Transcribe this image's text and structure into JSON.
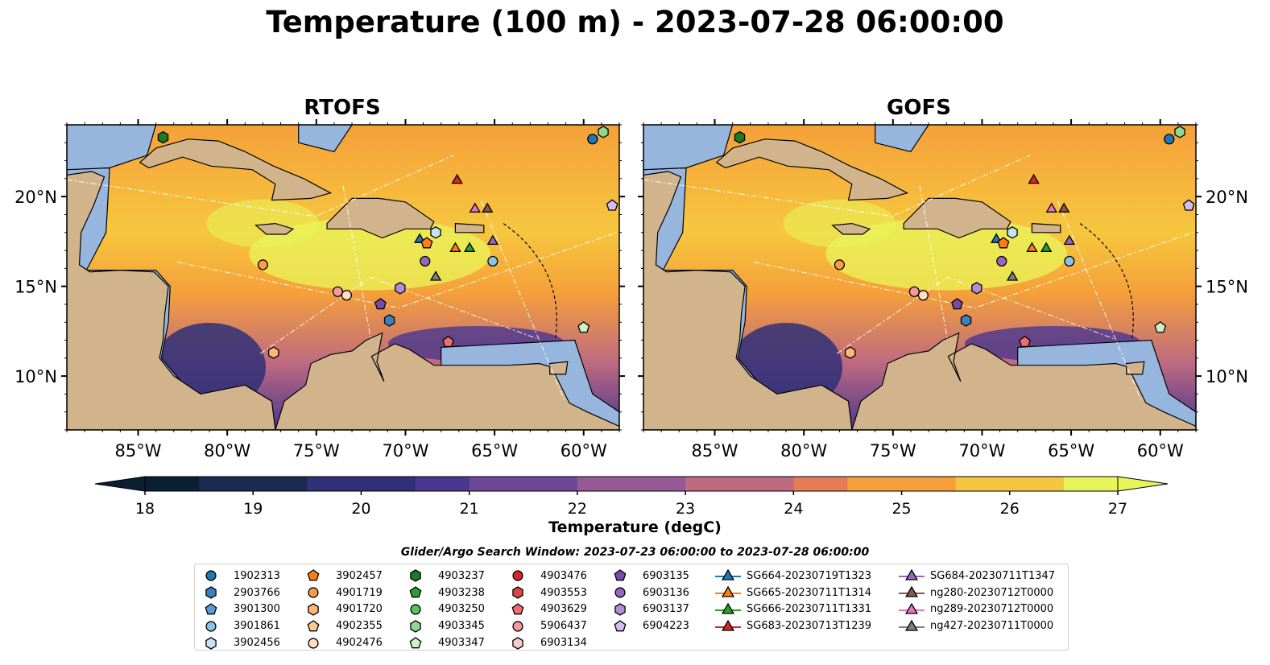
{
  "title": "Temperature (100 m) - 2023-07-28 06:00:00",
  "panels": [
    {
      "title": "RTOFS"
    },
    {
      "title": "GOFS"
    }
  ],
  "lon_ticks": [
    "85°W",
    "80°W",
    "75°W",
    "70°W",
    "65°W",
    "60°W"
  ],
  "lat_ticks": [
    "20°N",
    "15°N",
    "10°N"
  ],
  "colorbar": {
    "label": "Temperature (degC)",
    "min": 18,
    "max": 27,
    "tick_labels": [
      "18",
      "19",
      "20",
      "21",
      "22",
      "23",
      "24",
      "25",
      "26",
      "27"
    ],
    "colors": [
      "#0b1f33",
      "#1b2a52",
      "#2f3078",
      "#4a3790",
      "#6c4897",
      "#955a96",
      "#be6a80",
      "#e57c58",
      "#f5a03a",
      "#f6c73e",
      "#e8f55a"
    ]
  },
  "colors": {
    "ocean_shelf": "#96b6de",
    "land": "#d2b48c",
    "warm": "#f59a3f",
    "hot": "#e6f357",
    "cool": "#2f3078"
  },
  "legend": {
    "title": "Glider/Argo Search Window: 2023-07-23 06:00:00 to 2023-07-28 06:00:00",
    "columns": [
      [
        {
          "label": "1902313",
          "marker": "circle",
          "color": "#1f77b4"
        },
        {
          "label": "2903766",
          "marker": "hexagon",
          "color": "#3a80c0"
        },
        {
          "label": "3901300",
          "marker": "pentagon",
          "color": "#5b9bd5"
        },
        {
          "label": "3901861",
          "marker": "circle",
          "color": "#8cc2e8"
        },
        {
          "label": "3902456",
          "marker": "hexagon",
          "color": "#c6e2f5"
        }
      ],
      [
        {
          "label": "3902457",
          "marker": "pentagon",
          "color": "#ff7f0e"
        },
        {
          "label": "4901719",
          "marker": "circle",
          "color": "#fd9a4b"
        },
        {
          "label": "4901720",
          "marker": "hexagon",
          "color": "#fdb677"
        },
        {
          "label": "4902355",
          "marker": "pentagon",
          "color": "#fdc894"
        },
        {
          "label": "4902476",
          "marker": "circle",
          "color": "#fee0c0"
        }
      ],
      [
        {
          "label": "4903237",
          "marker": "hexagon",
          "color": "#1c7c24"
        },
        {
          "label": "4903238",
          "marker": "pentagon",
          "color": "#2ca02c"
        },
        {
          "label": "4903250",
          "marker": "circle",
          "color": "#5cc05c"
        },
        {
          "label": "4903345",
          "marker": "hexagon",
          "color": "#90d890"
        },
        {
          "label": "4903347",
          "marker": "pentagon",
          "color": "#cbf1cb"
        }
      ],
      [
        {
          "label": "4903476",
          "marker": "circle",
          "color": "#d62728"
        },
        {
          "label": "4903553",
          "marker": "hexagon",
          "color": "#e04545"
        },
        {
          "label": "4903629",
          "marker": "pentagon",
          "color": "#ee6e6e"
        },
        {
          "label": "5906437",
          "marker": "circle",
          "color": "#f59a9a"
        },
        {
          "label": "6903134",
          "marker": "hexagon",
          "color": "#fbcccc"
        }
      ],
      [
        {
          "label": "6903135",
          "marker": "pentagon",
          "color": "#7b4aa8"
        },
        {
          "label": "6903136",
          "marker": "circle",
          "color": "#9467bd"
        },
        {
          "label": "6903137",
          "marker": "hexagon",
          "color": "#b08ed6"
        },
        {
          "label": "6904223",
          "marker": "pentagon",
          "color": "#d3bcf0"
        }
      ],
      [
        {
          "label": "SG664-20230719T1323",
          "marker": "triangle-line",
          "color": "#1f77b4"
        },
        {
          "label": "SG665-20230711T1314",
          "marker": "triangle-line",
          "color": "#ff7f0e"
        },
        {
          "label": "SG666-20230711T1331",
          "marker": "triangle-line",
          "color": "#2ca02c"
        },
        {
          "label": "SG683-20230713T1239",
          "marker": "triangle-line",
          "color": "#d62728"
        }
      ],
      [
        {
          "label": "SG684-20230711T1347",
          "marker": "triangle-line",
          "color": "#9467bd"
        },
        {
          "label": "ng280-20230712T0000",
          "marker": "triangle-line",
          "color": "#8c564b"
        },
        {
          "label": "ng289-20230712T0000",
          "marker": "triangle-line",
          "color": "#e377c2"
        },
        {
          "label": "ng427-20230711T0000",
          "marker": "triangle-line",
          "color": "#7f7f7f"
        }
      ]
    ]
  },
  "markers_on_map": [
    {
      "marker": "circle",
      "color": "#1f77b4",
      "lon": -59.5,
      "lat": 23.2
    },
    {
      "marker": "hexagon",
      "color": "#90d890",
      "lon": -58.9,
      "lat": 23.6
    },
    {
      "marker": "hexagon",
      "color": "#1c7c24",
      "lon": -83.6,
      "lat": 23.3
    },
    {
      "marker": "circle",
      "color": "#fd9a4b",
      "lon": -78.0,
      "lat": 16.2
    },
    {
      "marker": "pentagon",
      "color": "#d3bcf0",
      "lon": -58.4,
      "lat": 19.5
    },
    {
      "marker": "triangle",
      "color": "#d62728",
      "lon": -67.1,
      "lat": 20.9
    },
    {
      "marker": "triangle",
      "color": "#e377c2",
      "lon": -66.1,
      "lat": 19.3
    },
    {
      "marker": "triangle",
      "color": "#8c564b",
      "lon": -65.4,
      "lat": 19.3
    },
    {
      "marker": "triangle",
      "color": "#1f77b4",
      "lon": -69.2,
      "lat": 17.6
    },
    {
      "marker": "pentagon",
      "color": "#ff7f0e",
      "lon": -68.8,
      "lat": 17.4
    },
    {
      "marker": "hexagon",
      "color": "#c6e2f5",
      "lon": -68.3,
      "lat": 18.0
    },
    {
      "marker": "triangle",
      "color": "#ff7f0e",
      "lon": -67.2,
      "lat": 17.1
    },
    {
      "marker": "triangle",
      "color": "#2ca02c",
      "lon": -66.4,
      "lat": 17.1
    },
    {
      "marker": "triangle",
      "color": "#9467bd",
      "lon": -65.1,
      "lat": 17.5
    },
    {
      "marker": "circle",
      "color": "#9467bd",
      "lon": -68.9,
      "lat": 16.4
    },
    {
      "marker": "circle",
      "color": "#8cc2e8",
      "lon": -65.1,
      "lat": 16.4
    },
    {
      "marker": "triangle",
      "color": "#7f7f7f",
      "lon": -68.3,
      "lat": 15.5
    },
    {
      "marker": "hexagon",
      "color": "#b08ed6",
      "lon": -70.3,
      "lat": 14.9
    },
    {
      "marker": "circle",
      "color": "#f59a9a",
      "lon": -73.8,
      "lat": 14.7
    },
    {
      "marker": "circle",
      "color": "#fee0c0",
      "lon": -73.3,
      "lat": 14.5
    },
    {
      "marker": "pentagon",
      "color": "#7b4aa8",
      "lon": -71.4,
      "lat": 14.0
    },
    {
      "marker": "hexagon",
      "color": "#3a80c0",
      "lon": -70.9,
      "lat": 13.1
    },
    {
      "marker": "pentagon",
      "color": "#cbf1cb",
      "lon": -60.0,
      "lat": 12.7
    },
    {
      "marker": "pentagon",
      "color": "#ee6e6e",
      "lon": -67.6,
      "lat": 11.9
    },
    {
      "marker": "hexagon",
      "color": "#fdb677",
      "lon": -77.4,
      "lat": 11.3
    }
  ]
}
